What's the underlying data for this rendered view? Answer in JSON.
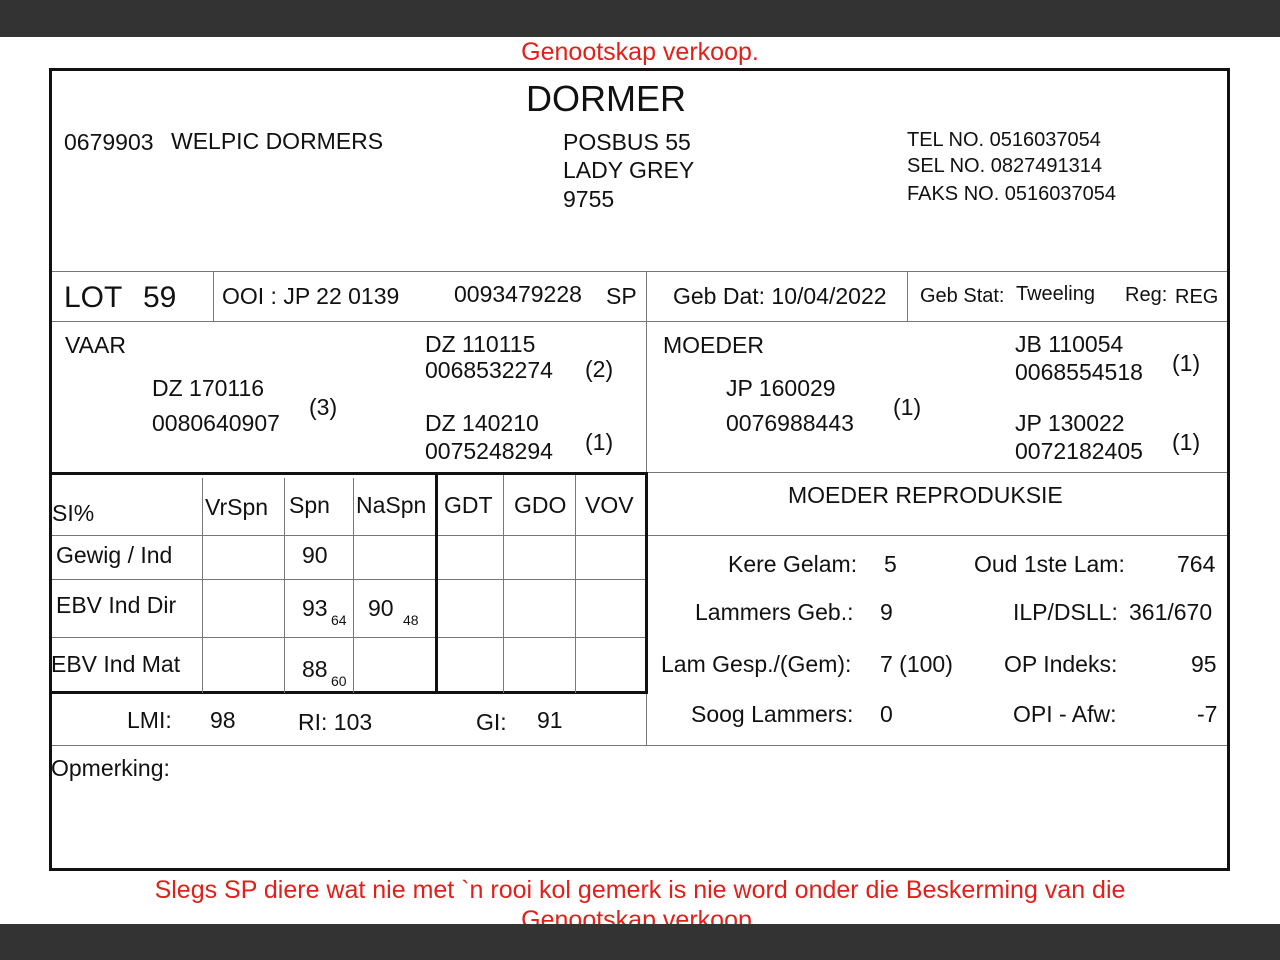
{
  "header_note": "Genootskap verkoop.",
  "footer_note": "Slegs SP diere wat nie met `n rooi kol gemerk is nie word onder die Beskerming van die Genootskap verkoop.",
  "accent_color": "#e0201b",
  "breed": "DORMER",
  "breeder": {
    "id": "0679903",
    "name": "WELPIC DORMERS",
    "address": [
      "POSBUS 55",
      "LADY GREY",
      "9755"
    ],
    "tel": "TEL NO. 0516037054",
    "sel": "SEL NO. 0827491314",
    "faks": "FAKS NO. 0516037054"
  },
  "lot": {
    "label": "LOT",
    "number": "59",
    "ooi": "OOI : JP 22 0139",
    "reg_no": "0093479228",
    "grade": "SP",
    "geb_dat": "Geb Dat: 10/04/2022",
    "geb_stat_label": "Geb Stat:",
    "geb_stat": "Tweeling",
    "reg_label": "Reg:",
    "reg": "REG"
  },
  "vaar": {
    "label": "VAAR",
    "id": "DZ  170116",
    "no": "0080640907",
    "count": "(3)",
    "sire": {
      "id": "DZ  110115",
      "no": "0068532274",
      "count": "(2)"
    },
    "dam": {
      "id": "DZ  140210",
      "no": "0075248294",
      "count": "(1)"
    }
  },
  "moeder": {
    "label": "MOEDER",
    "id": "JP  160029",
    "no": "0076988443",
    "count": "(1)",
    "sire": {
      "id": "JB  110054",
      "no": "0068554518",
      "count": "(1)"
    },
    "dam": {
      "id": "JP  130022",
      "no": "0072182405",
      "count": "(1)"
    }
  },
  "si_table": {
    "headers": [
      "SI%",
      "VrSpn",
      "Spn",
      "NaSpn",
      "GDT",
      "GDO",
      "VOV"
    ],
    "rows": [
      {
        "label": "Gewig / Ind",
        "spn": "90"
      },
      {
        "label": "EBV Ind Dir",
        "spn": "93",
        "spn_sub": "64",
        "naspn": "90",
        "naspn_sub": "48"
      },
      {
        "label": "EBV Ind Mat",
        "spn": "88",
        "spn_sub": "60"
      }
    ]
  },
  "indices": {
    "lmi_label": "LMI:",
    "lmi": "98",
    "ri": "RI: 103",
    "gi_label": "GI:",
    "gi": "91"
  },
  "reproduksie": {
    "title": "MOEDER REPRODUKSIE",
    "kere_gelam_label": "Kere Gelam:",
    "kere_gelam": "5",
    "oud_label": "Oud 1ste Lam:",
    "oud": "764",
    "lammers_geb_label": "Lammers Geb.:",
    "lammers_geb": "9",
    "ilp_label": "ILP/DSLL:",
    "ilp": "361/670",
    "lam_gesp_label": "Lam Gesp./(Gem):",
    "lam_gesp": "7 (100)",
    "op_label": "OP Indeks:",
    "op": "95",
    "soog_label": "Soog Lammers:",
    "soog": "0",
    "opi_label": "OPI - Afw:",
    "opi": "-7"
  },
  "opmerking_label": "Opmerking:"
}
